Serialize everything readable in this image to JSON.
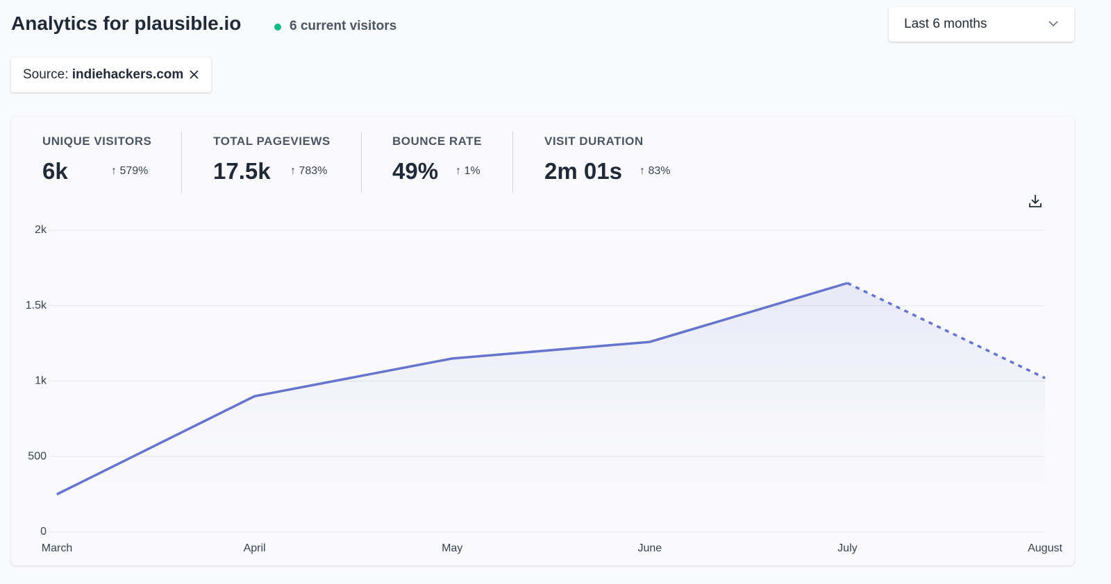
{
  "header": {
    "title": "Analytics for plausible.io",
    "visitors": "6 current visitors",
    "period": "Last 6 months"
  },
  "filter": {
    "label": "Source:",
    "value": "indiehackers.com"
  },
  "stats": [
    {
      "label": "UNIQUE VISITORS",
      "value": "6k",
      "change": "↑ 579%"
    },
    {
      "label": "TOTAL PAGEVIEWS",
      "value": "17.5k",
      "change": "↑ 783%"
    },
    {
      "label": "BOUNCE RATE",
      "value": "49%",
      "change": "↑ 1%"
    },
    {
      "label": "VISIT DURATION",
      "value": "2m 01s",
      "change": "↑ 83%"
    }
  ],
  "chart_data": {
    "type": "line",
    "categories": [
      "March",
      "April",
      "May",
      "June",
      "July",
      "August"
    ],
    "values": [
      250,
      900,
      1150,
      1260,
      1650,
      1020
    ],
    "color": "#6574cd",
    "dashed_last_segment": true,
    "ylim": [
      0,
      2000
    ],
    "yticks": [
      0,
      500,
      {
        "value": 1000,
        "label": "1k"
      },
      {
        "value": 1500,
        "label": "1.5k"
      },
      {
        "value": 2000,
        "label": "2k"
      }
    ],
    "grid": true
  }
}
